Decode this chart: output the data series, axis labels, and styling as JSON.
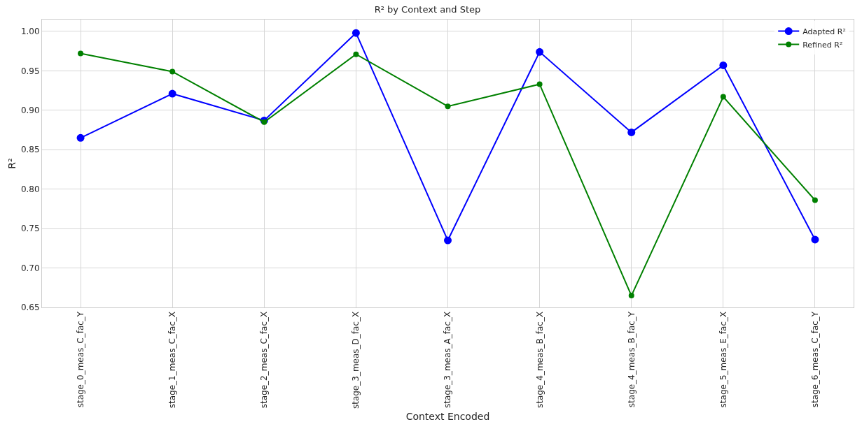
{
  "chart_data": {
    "type": "line",
    "title": "R² by Context and Step",
    "xlabel": "Context Encoded",
    "ylabel": "R²",
    "categories": [
      "stage_0_meas_C_fac_Y",
      "stage_1_meas_C_fac_X",
      "stage_2_meas_C_fac_X",
      "stage_3_meas_D_fac_X",
      "stage_3_meas_A_fac_X",
      "stage_4_meas_B_fac_X",
      "stage_4_meas_B_fac_Y",
      "stage_5_meas_E_fac_X",
      "stage_6_meas_C_fac_Y"
    ],
    "series": [
      {
        "name": "Adapted R²",
        "color": "#0000ff",
        "values": [
          0.865,
          0.921,
          0.887,
          0.998,
          0.735,
          0.974,
          0.872,
          0.957,
          0.736
        ]
      },
      {
        "name": "Refined R²",
        "color": "#008000",
        "values": [
          0.972,
          0.949,
          0.885,
          0.971,
          0.905,
          0.933,
          0.665,
          0.917,
          0.786
        ]
      }
    ],
    "ylim": [
      0.65,
      1.015
    ],
    "yticks": [
      {
        "value": 0.65,
        "label": "0.65"
      },
      {
        "value": 0.7,
        "label": "0.70"
      },
      {
        "value": 0.75,
        "label": "0.75"
      },
      {
        "value": 0.8,
        "label": "0.80"
      },
      {
        "value": 0.85,
        "label": "0.85"
      },
      {
        "value": 0.9,
        "label": "0.90"
      },
      {
        "value": 0.95,
        "label": "0.95"
      },
      {
        "value": 1.0,
        "label": "1.00"
      }
    ],
    "grid": true,
    "legend": "top right",
    "marker": "circle",
    "line_style": "solid"
  }
}
